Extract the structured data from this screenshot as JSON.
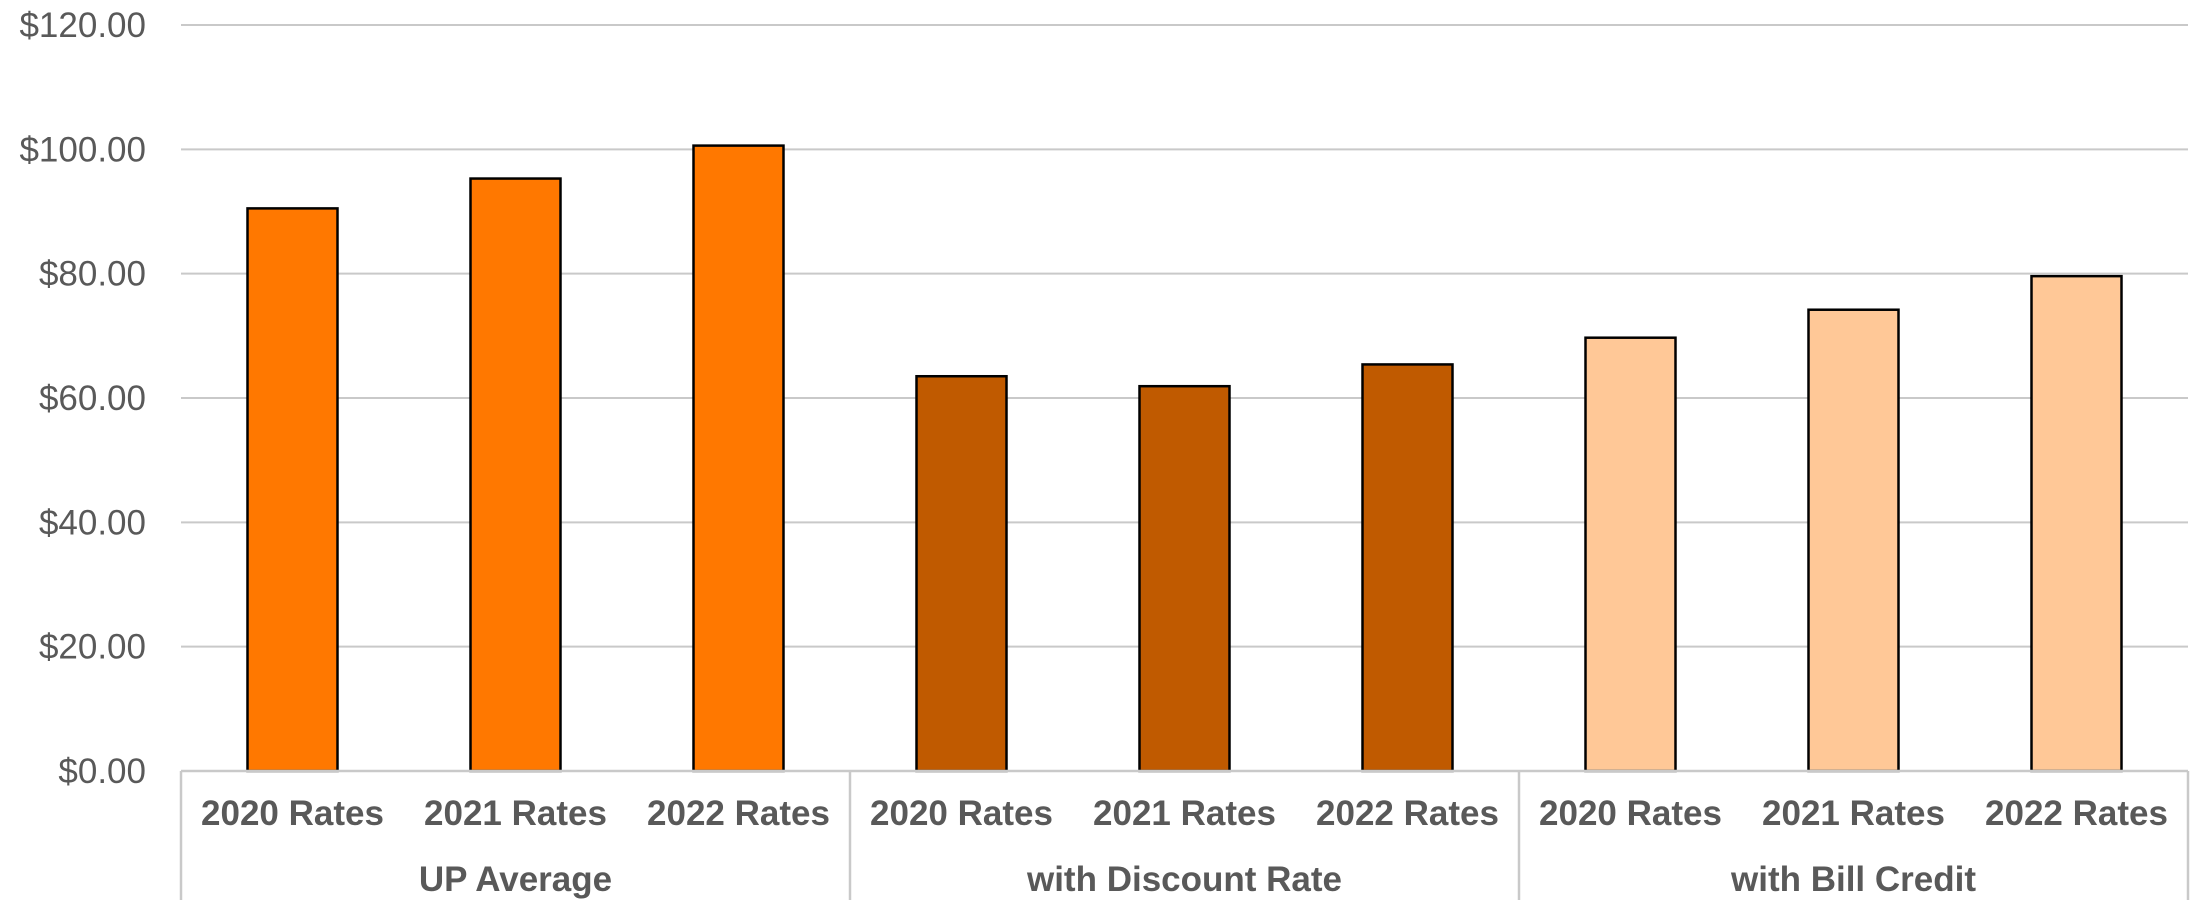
{
  "chart_data": {
    "type": "bar",
    "title": "",
    "xlabel": "",
    "ylabel": "",
    "ylim": [
      0,
      120
    ],
    "y_ticks": [
      "$0.00",
      "$20.00",
      "$40.00",
      "$60.00",
      "$80.00",
      "$100.00",
      "$120.00"
    ],
    "y_tick_values": [
      0,
      20,
      40,
      60,
      80,
      100,
      120
    ],
    "grid": true,
    "legend": "none",
    "groups": [
      {
        "label": "UP Average",
        "color": "#FF7800",
        "categories": [
          "2020 Rates",
          "2021 Rates",
          "2022 Rates"
        ],
        "values": [
          90.5,
          95.3,
          100.6
        ]
      },
      {
        "label": "with Discount Rate",
        "color": "#C05A00",
        "categories": [
          "2020 Rates",
          "2021 Rates",
          "2022 Rates"
        ],
        "values": [
          63.5,
          61.9,
          65.4
        ]
      },
      {
        "label": "with Bill Credit",
        "color": "#FFC897",
        "categories": [
          "2020 Rates",
          "2021 Rates",
          "2022 Rates"
        ],
        "values": [
          69.7,
          74.2,
          79.6
        ]
      }
    ]
  }
}
